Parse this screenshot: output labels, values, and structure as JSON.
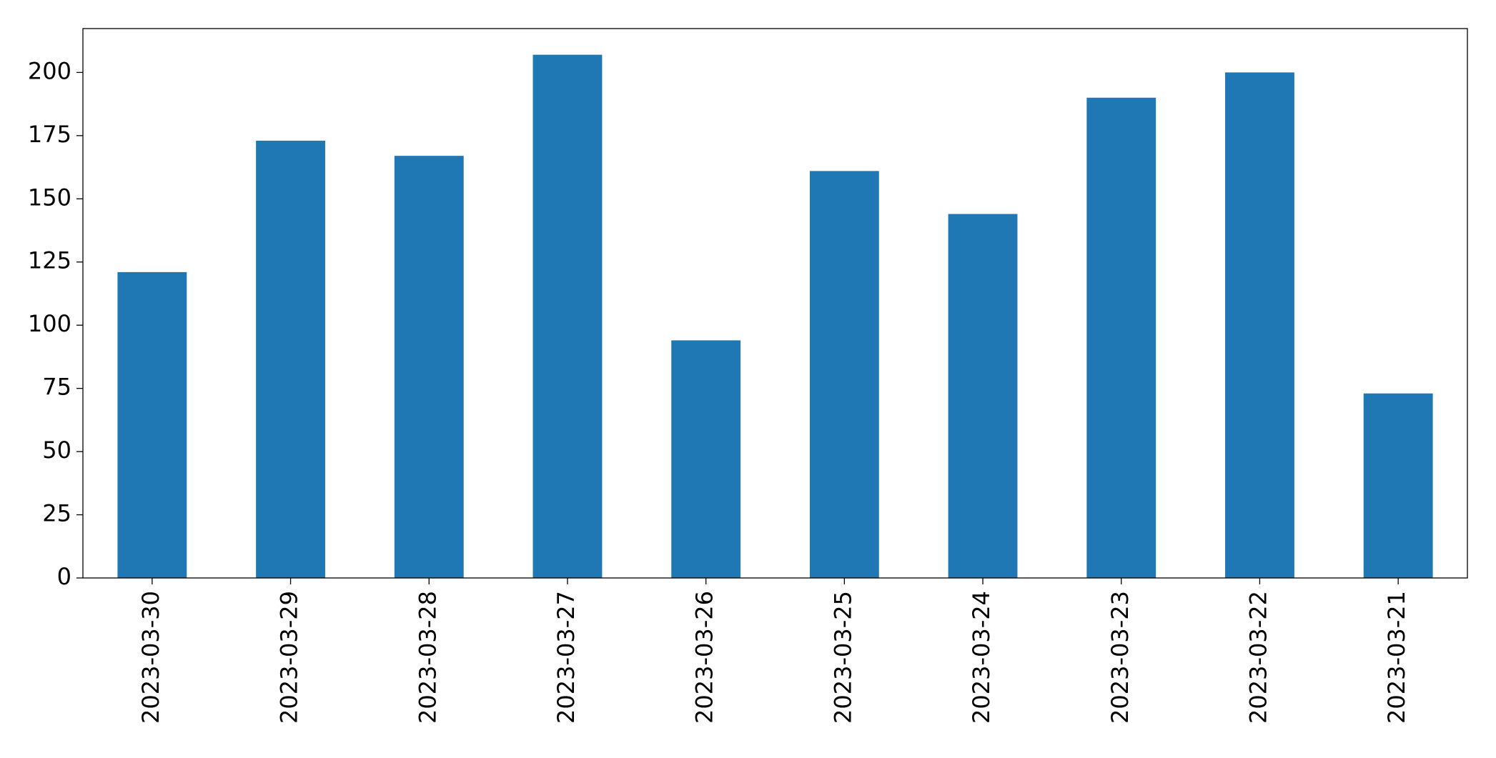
{
  "chart_data": {
    "type": "bar",
    "categories": [
      "2023-03-30",
      "2023-03-29",
      "2023-03-28",
      "2023-03-27",
      "2023-03-26",
      "2023-03-25",
      "2023-03-24",
      "2023-03-23",
      "2023-03-22",
      "2023-03-21"
    ],
    "values": [
      121,
      173,
      167,
      207,
      94,
      161,
      144,
      190,
      200,
      73
    ],
    "color": "#1f77b4",
    "ylim": [
      0,
      217.35
    ],
    "yticks": [
      0,
      25,
      50,
      75,
      100,
      125,
      150,
      175,
      200
    ],
    "grid": false
  }
}
